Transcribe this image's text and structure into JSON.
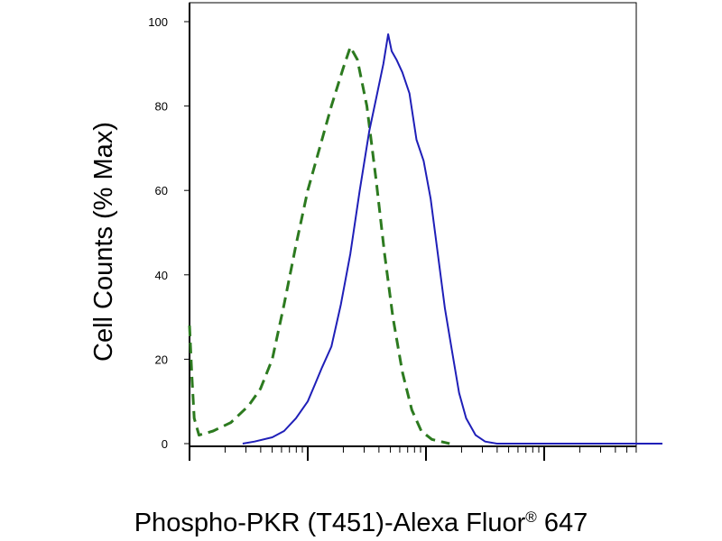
{
  "chart_data": {
    "type": "line",
    "title": "",
    "xlabel_main": "Phospho-PKR (T451)-Alexa Fluor",
    "xlabel_sup": "®",
    "xlabel_tail": " 647",
    "ylabel": "Cell Counts (% Max)",
    "x_scale": "log",
    "x_decades": [
      0,
      1,
      2,
      3,
      4
    ],
    "ylim": [
      0,
      100
    ],
    "yticks": [
      0,
      20,
      40,
      60,
      80,
      100
    ],
    "grid": false,
    "legend": "none",
    "series": [
      {
        "color": "#2c7a1f",
        "style": "dashed",
        "points": [
          [
            0.0,
            28
          ],
          [
            0.02,
            16
          ],
          [
            0.04,
            6
          ],
          [
            0.08,
            2
          ],
          [
            0.2,
            3
          ],
          [
            0.35,
            5
          ],
          [
            0.5,
            9
          ],
          [
            0.6,
            13
          ],
          [
            0.7,
            20
          ],
          [
            0.8,
            33
          ],
          [
            0.9,
            47
          ],
          [
            1.0,
            60
          ],
          [
            1.1,
            70
          ],
          [
            1.2,
            80
          ],
          [
            1.3,
            89
          ],
          [
            1.36,
            94
          ],
          [
            1.42,
            91
          ],
          [
            1.5,
            80
          ],
          [
            1.58,
            62
          ],
          [
            1.65,
            45
          ],
          [
            1.72,
            30
          ],
          [
            1.8,
            17
          ],
          [
            1.88,
            8
          ],
          [
            1.96,
            3
          ],
          [
            2.05,
            1
          ],
          [
            2.2,
            0
          ]
        ]
      },
      {
        "color": "#1f1fb8",
        "style": "solid",
        "points": [
          [
            0.45,
            0
          ],
          [
            0.55,
            0.5
          ],
          [
            0.7,
            1.5
          ],
          [
            0.8,
            3
          ],
          [
            0.9,
            6
          ],
          [
            1.0,
            10
          ],
          [
            1.06,
            14
          ],
          [
            1.12,
            18
          ],
          [
            1.2,
            23
          ],
          [
            1.28,
            33
          ],
          [
            1.36,
            45
          ],
          [
            1.44,
            60
          ],
          [
            1.52,
            74
          ],
          [
            1.58,
            82
          ],
          [
            1.64,
            90
          ],
          [
            1.68,
            97
          ],
          [
            1.71,
            93
          ],
          [
            1.75,
            91
          ],
          [
            1.8,
            88
          ],
          [
            1.86,
            83
          ],
          [
            1.92,
            72
          ],
          [
            1.98,
            67
          ],
          [
            2.04,
            58
          ],
          [
            2.1,
            45
          ],
          [
            2.16,
            32
          ],
          [
            2.22,
            22
          ],
          [
            2.28,
            12
          ],
          [
            2.34,
            6
          ],
          [
            2.42,
            2
          ],
          [
            2.5,
            0.5
          ],
          [
            2.6,
            0
          ],
          [
            4.0,
            0
          ]
        ]
      }
    ]
  }
}
